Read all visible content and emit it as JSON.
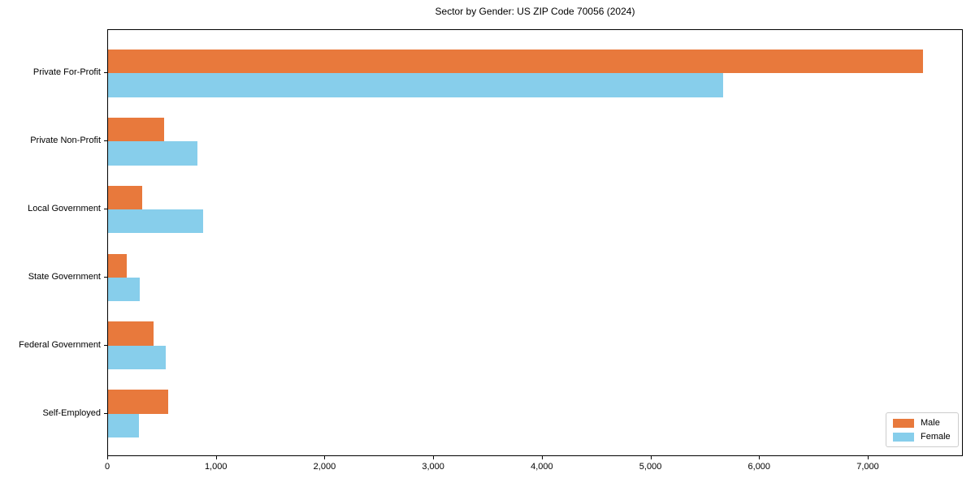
{
  "title": "Sector by Gender: US ZIP Code 70056 (2024)",
  "chart_data": {
    "type": "bar",
    "orientation": "horizontal",
    "title": "Sector by Gender: US ZIP Code 70056 (2024)",
    "categories": [
      "Private For-Profit",
      "Private Non-Profit",
      "Local Government",
      "State Government",
      "Federal Government",
      "Self-Employed"
    ],
    "series": [
      {
        "name": "Male",
        "color": "#e8793c",
        "values": [
          7500,
          515,
          315,
          170,
          420,
          555
        ]
      },
      {
        "name": "Female",
        "color": "#87ceeb",
        "values": [
          5660,
          820,
          875,
          290,
          530,
          285
        ]
      }
    ],
    "xlabel": "",
    "ylabel": "",
    "xlim": [
      0,
      7875
    ],
    "xticks": [
      0,
      1000,
      2000,
      3000,
      4000,
      5000,
      6000,
      7000
    ],
    "xtick_labels": [
      "0",
      "1,000",
      "2,000",
      "3,000",
      "4,000",
      "5,000",
      "6,000",
      "7,000"
    ],
    "grid": false,
    "legend_position": "lower right"
  }
}
